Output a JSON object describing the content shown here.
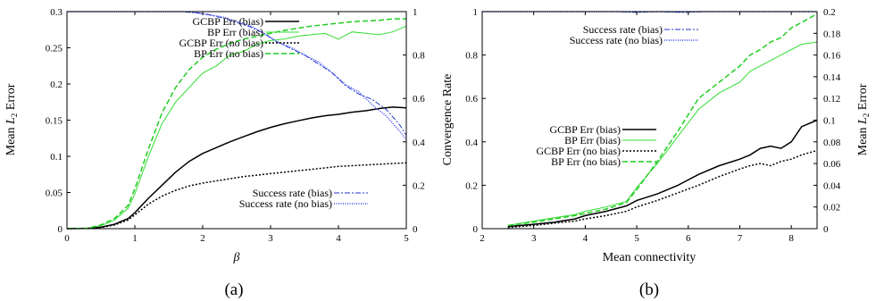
{
  "chart_data": [
    {
      "type": "line",
      "caption": "(a)",
      "xlabel": "β",
      "ylabel_left": "Mean L2 Error",
      "ylabel_right": "Convergence Rate",
      "xlim": [
        0,
        5
      ],
      "ylim_left": [
        0,
        0.3
      ],
      "ylim_right": [
        0,
        1
      ],
      "x_ticks": [
        "0",
        "1",
        "2",
        "3",
        "4",
        "5"
      ],
      "y_left_ticks": [
        "0",
        "0.05",
        "0.1",
        "0.15",
        "0.2",
        "0.25",
        "0.3"
      ],
      "y_right_ticks": [
        "0",
        "0.2",
        "0.4",
        "0.6",
        "0.8",
        "1"
      ],
      "legend_top": [
        "GCBP Err (bias)",
        "BP Err (bias)",
        "GCBP Err (no bias)",
        "BP Err (no bias)"
      ],
      "legend_bottom": [
        "Success rate (bias)",
        "Success rate (no bias)"
      ],
      "series": [
        {
          "name": "GCBP Err (bias)",
          "axis": "left",
          "color": "#000000",
          "dash": "",
          "width": 1.5,
          "x": [
            0,
            0.3,
            0.5,
            0.7,
            0.9,
            1.0,
            1.2,
            1.4,
            1.6,
            1.8,
            2.0,
            2.2,
            2.4,
            2.6,
            2.8,
            3.0,
            3.2,
            3.4,
            3.6,
            3.8,
            4.0,
            4.2,
            4.4,
            4.6,
            4.8,
            5.0
          ],
          "y": [
            0,
            0.0005,
            0.002,
            0.006,
            0.014,
            0.022,
            0.042,
            0.06,
            0.078,
            0.093,
            0.104,
            0.112,
            0.12,
            0.127,
            0.134,
            0.14,
            0.145,
            0.149,
            0.153,
            0.156,
            0.158,
            0.161,
            0.163,
            0.166,
            0.168,
            0.167
          ]
        },
        {
          "name": "BP Err (bias)",
          "axis": "left",
          "color": "#33dd33",
          "dash": "",
          "width": 1,
          "x": [
            0,
            0.3,
            0.5,
            0.7,
            0.9,
            1.0,
            1.2,
            1.4,
            1.6,
            1.8,
            2.0,
            2.2,
            2.4,
            2.6,
            2.8,
            3.0,
            3.2,
            3.4,
            3.6,
            3.8,
            4.0,
            4.2,
            4.4,
            4.6,
            4.8,
            5.0
          ],
          "y": [
            0,
            0.0005,
            0.004,
            0.012,
            0.028,
            0.048,
            0.1,
            0.145,
            0.175,
            0.195,
            0.215,
            0.225,
            0.24,
            0.245,
            0.255,
            0.26,
            0.262,
            0.266,
            0.268,
            0.27,
            0.262,
            0.272,
            0.27,
            0.268,
            0.272,
            0.28
          ]
        },
        {
          "name": "GCBP Err (no bias)",
          "axis": "left",
          "color": "#000000",
          "dash": "2,2",
          "width": 1.5,
          "x": [
            0,
            0.3,
            0.5,
            0.7,
            0.9,
            1.0,
            1.2,
            1.4,
            1.6,
            1.8,
            2.0,
            2.2,
            2.4,
            2.6,
            2.8,
            3.0,
            3.2,
            3.4,
            3.6,
            3.8,
            4.0,
            4.2,
            4.4,
            4.6,
            4.8,
            5.0
          ],
          "y": [
            0,
            0.0004,
            0.0015,
            0.005,
            0.012,
            0.019,
            0.034,
            0.045,
            0.053,
            0.059,
            0.063,
            0.066,
            0.069,
            0.072,
            0.074,
            0.076,
            0.078,
            0.08,
            0.082,
            0.084,
            0.086,
            0.087,
            0.088,
            0.089,
            0.09,
            0.091
          ]
        },
        {
          "name": "BP Err (no bias)",
          "axis": "left",
          "color": "#22cc22",
          "dash": "6,3",
          "width": 1.5,
          "x": [
            0,
            0.3,
            0.5,
            0.7,
            0.9,
            1.0,
            1.2,
            1.4,
            1.6,
            1.8,
            2.0,
            2.2,
            2.4,
            2.6,
            2.8,
            3.0,
            3.2,
            3.4,
            3.6,
            3.8,
            4.0,
            4.2,
            4.4,
            4.6,
            4.8,
            5.0
          ],
          "y": [
            0,
            0.0005,
            0.005,
            0.014,
            0.032,
            0.055,
            0.11,
            0.16,
            0.195,
            0.22,
            0.237,
            0.248,
            0.256,
            0.262,
            0.266,
            0.27,
            0.274,
            0.277,
            0.28,
            0.282,
            0.284,
            0.286,
            0.287,
            0.288,
            0.29,
            0.29
          ]
        },
        {
          "name": "Success rate (bias)",
          "axis": "right",
          "color": "#2233cc",
          "dash": "6,2,2,2",
          "width": 1,
          "x": [
            0,
            1.0,
            1.5,
            1.7,
            1.9,
            2.1,
            2.3,
            2.5,
            2.7,
            2.9,
            3.1,
            3.3,
            3.5,
            3.7,
            3.9,
            4.1,
            4.3,
            4.5,
            4.7,
            4.9,
            5.0
          ],
          "y": [
            1,
            1,
            1,
            1,
            0.995,
            0.985,
            0.97,
            0.95,
            0.93,
            0.9,
            0.86,
            0.83,
            0.8,
            0.76,
            0.72,
            0.66,
            0.62,
            0.595,
            0.55,
            0.48,
            0.43
          ]
        },
        {
          "name": "Success rate (no bias)",
          "axis": "right",
          "color": "#3344ee",
          "dash": "1,1.5",
          "width": 1.5,
          "x": [
            0,
            1.0,
            1.5,
            1.7,
            1.9,
            2.1,
            2.3,
            2.5,
            2.7,
            2.9,
            3.1,
            3.3,
            3.5,
            3.7,
            3.9,
            4.1,
            4.3,
            4.5,
            4.7,
            4.9,
            5.0
          ],
          "y": [
            1,
            1,
            1,
            1,
            0.995,
            0.985,
            0.975,
            0.955,
            0.935,
            0.9,
            0.86,
            0.835,
            0.8,
            0.77,
            0.72,
            0.665,
            0.63,
            0.57,
            0.52,
            0.45,
            0.41
          ]
        }
      ]
    },
    {
      "type": "line",
      "caption": "(b)",
      "xlabel": "Mean connectivity",
      "ylabel_left": "",
      "ylabel_right": "Mean L2 Error",
      "xlim": [
        2,
        8.5
      ],
      "ylim_left": [
        0,
        1
      ],
      "ylim_right": [
        0,
        0.2
      ],
      "x_ticks": [
        "2",
        "3",
        "4",
        "5",
        "6",
        "7",
        "8"
      ],
      "y_left_ticks": [
        "0",
        "0.2",
        "0.4",
        "0.6",
        "0.8",
        "1"
      ],
      "y_right_ticks": [
        "0",
        "0.02",
        "0.04",
        "0.06",
        "0.08",
        "0.1",
        "0.12",
        "0.14",
        "0.16",
        "0.18",
        "0.2"
      ],
      "legend_top": [
        "Success rate (bias)",
        "Success rate (no bias)"
      ],
      "legend_bottom": [
        "GCBP Err (bias)",
        "BP Err (bias)",
        "GCBP Err (no bias)",
        "BP Err (no bias)"
      ],
      "series": [
        {
          "name": "Success rate (bias)",
          "axis": "left",
          "color": "#2233cc",
          "dash": "6,2,2,2",
          "width": 1,
          "x": [
            2,
            4.6,
            5.0,
            5.4,
            5.9,
            6.3,
            8.5
          ],
          "y": [
            1,
            1,
            0.997,
            1,
            0.997,
            1,
            1
          ]
        },
        {
          "name": "Success rate (no bias)",
          "axis": "left",
          "color": "#3344ee",
          "dash": "1,1.5",
          "width": 1.5,
          "x": [
            2,
            4.6,
            5.0,
            5.4,
            5.9,
            6.3,
            8.5
          ],
          "y": [
            1,
            1,
            0.997,
            1,
            0.997,
            1,
            1
          ]
        },
        {
          "name": "GCBP Err (bias)",
          "axis": "right",
          "color": "#000000",
          "dash": "",
          "width": 1.5,
          "x": [
            2.5,
            3.0,
            3.4,
            3.8,
            4.0,
            4.4,
            4.8,
            5.0,
            5.4,
            5.8,
            6.2,
            6.6,
            7.0,
            7.2,
            7.4,
            7.6,
            7.8,
            8.0,
            8.2,
            8.5
          ],
          "y": [
            0.002,
            0.004,
            0.006,
            0.009,
            0.012,
            0.016,
            0.021,
            0.026,
            0.032,
            0.04,
            0.05,
            0.058,
            0.064,
            0.068,
            0.074,
            0.076,
            0.074,
            0.08,
            0.094,
            0.1
          ]
        },
        {
          "name": "BP Err (bias)",
          "axis": "right",
          "color": "#33dd33",
          "dash": "",
          "width": 1,
          "x": [
            2.5,
            3.0,
            3.4,
            3.8,
            4.0,
            4.4,
            4.8,
            5.0,
            5.4,
            5.8,
            6.2,
            6.6,
            7.0,
            7.2,
            7.4,
            7.6,
            7.8,
            8.0,
            8.2,
            8.5
          ],
          "y": [
            0.003,
            0.007,
            0.01,
            0.013,
            0.016,
            0.02,
            0.025,
            0.038,
            0.06,
            0.085,
            0.11,
            0.125,
            0.135,
            0.145,
            0.15,
            0.155,
            0.16,
            0.165,
            0.17,
            0.172
          ]
        },
        {
          "name": "GCBP Err (no bias)",
          "axis": "right",
          "color": "#000000",
          "dash": "2,2",
          "width": 1.5,
          "x": [
            2.5,
            3.0,
            3.4,
            3.8,
            4.0,
            4.4,
            4.8,
            5.0,
            5.4,
            5.8,
            6.2,
            6.6,
            7.0,
            7.2,
            7.4,
            7.6,
            7.8,
            8.0,
            8.2,
            8.5
          ],
          "y": [
            0.001,
            0.003,
            0.005,
            0.007,
            0.009,
            0.012,
            0.016,
            0.02,
            0.026,
            0.033,
            0.04,
            0.048,
            0.055,
            0.058,
            0.06,
            0.058,
            0.062,
            0.064,
            0.068,
            0.072
          ]
        },
        {
          "name": "BP Err (no bias)",
          "axis": "right",
          "color": "#22cc22",
          "dash": "6,3",
          "width": 1.5,
          "x": [
            2.5,
            3.0,
            3.4,
            3.8,
            4.0,
            4.4,
            4.8,
            5.0,
            5.4,
            5.8,
            6.2,
            6.6,
            7.0,
            7.2,
            7.4,
            7.6,
            7.8,
            8.0,
            8.2,
            8.5
          ],
          "y": [
            0.003,
            0.006,
            0.009,
            0.012,
            0.014,
            0.018,
            0.024,
            0.036,
            0.062,
            0.09,
            0.12,
            0.135,
            0.15,
            0.16,
            0.165,
            0.172,
            0.176,
            0.185,
            0.19,
            0.198
          ]
        }
      ]
    }
  ]
}
